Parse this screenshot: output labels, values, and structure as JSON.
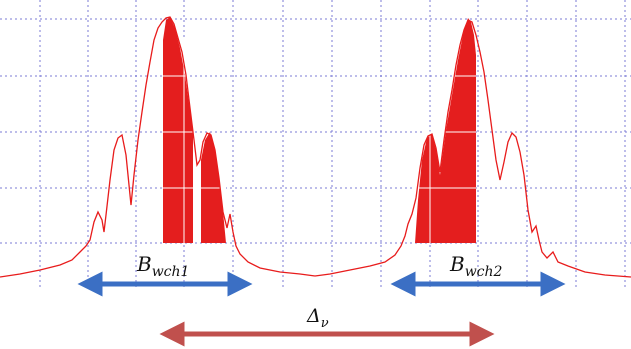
{
  "labels": {
    "bw1_main": "B",
    "bw1_sub": "wch1",
    "bw2_main": "B",
    "bw2_sub": "wch2",
    "delta_main": "Δ",
    "delta_sub": "ν"
  },
  "colors": {
    "spectrum": "#e81c1c",
    "fill": "#e41e1e",
    "grid": "#7b7bd6",
    "bandwidth_arrow": "#3b6fc4",
    "spacing_arrow": "#c0504d"
  }
}
